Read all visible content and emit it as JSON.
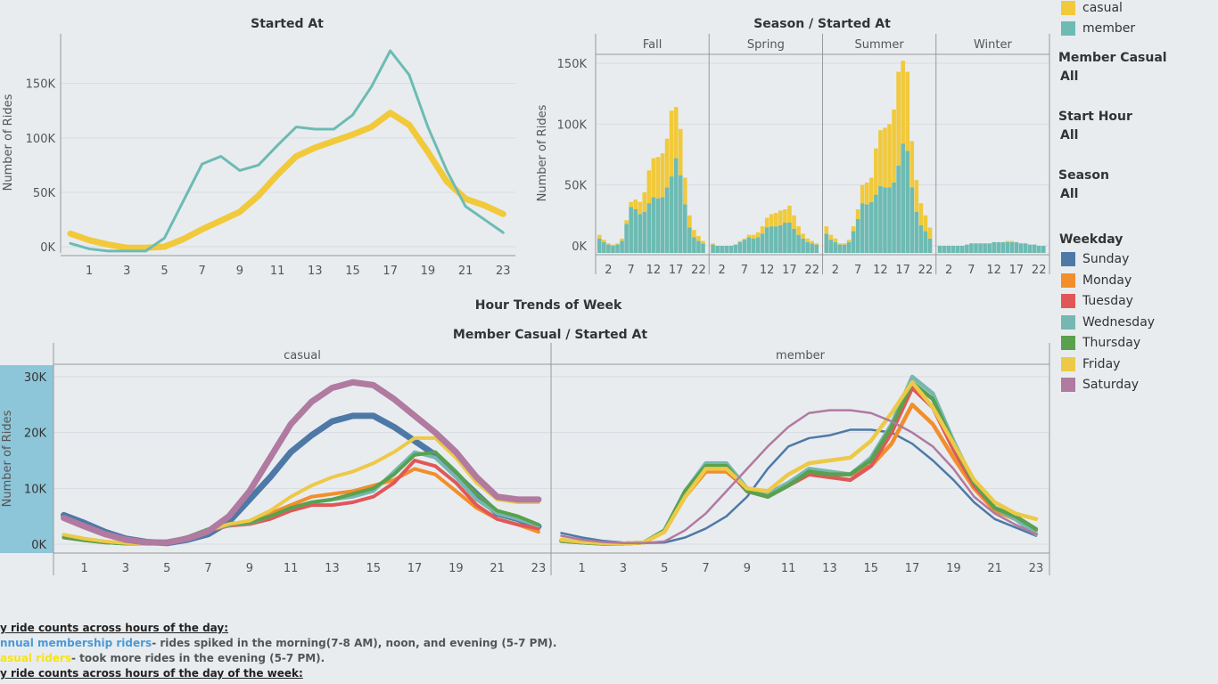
{
  "colors": {
    "casual": "#f1c93b",
    "member": "#6dbbb3",
    "weekdays": {
      "Sunday": "#4e79a7",
      "Monday": "#f28e2b",
      "Tuesday": "#e15759",
      "Wednesday": "#76b7b2",
      "Thursday": "#59a14f",
      "Friday": "#edc948",
      "Saturday": "#b07aa1"
    }
  },
  "legend_member": {
    "items": [
      {
        "label": "casual",
        "color": "#f1c93b"
      },
      {
        "label": "member",
        "color": "#6dbbb3"
      }
    ]
  },
  "filters": [
    {
      "title": "Member Casual",
      "value": "All"
    },
    {
      "title": "Start Hour",
      "value": "All"
    },
    {
      "title": "Season",
      "value": "All"
    }
  ],
  "legend_weekday": {
    "title": "Weekday",
    "items": [
      "Sunday",
      "Monday",
      "Tuesday",
      "Wednesday",
      "Thursday",
      "Friday",
      "Saturday"
    ]
  },
  "section_title": "Hour Trends of Week",
  "notes": {
    "line1": "y ride counts across hours of the day:",
    "line2a": "nnual membership riders",
    "line2b": "- rides spiked in the morning(7-8 AM), noon, and evening (5-7 PM).",
    "line3a": "asual riders",
    "line3b": "- took more rides in the evening (5-7 PM).",
    "line4": "y ride counts across hours of the day of the week:"
  },
  "chart_data": [
    {
      "type": "line",
      "title": "Started At",
      "ylabel": "Number of Rides",
      "xticks": [
        "1",
        "3",
        "5",
        "7",
        "9",
        "11",
        "13",
        "15",
        "17",
        "19",
        "21",
        "23"
      ],
      "yticks": [
        "0K",
        "50K",
        "100K",
        "150K"
      ],
      "ylim": [
        0,
        190000
      ],
      "x": [
        0,
        1,
        2,
        3,
        4,
        5,
        6,
        7,
        8,
        9,
        10,
        11,
        12,
        13,
        14,
        15,
        16,
        17,
        18,
        19,
        20,
        21,
        22,
        23
      ],
      "series": [
        {
          "name": "casual",
          "values": [
            12000,
            6000,
            2000,
            -1000,
            -1000,
            0,
            7000,
            16000,
            24000,
            32000,
            47000,
            66000,
            83000,
            91000,
            97000,
            103000,
            110000,
            123000,
            112000,
            87000,
            60000,
            44000,
            38000,
            30000
          ]
        },
        {
          "name": "member",
          "values": [
            3000,
            -2000,
            -4000,
            -4000,
            -4000,
            8000,
            42000,
            76000,
            83000,
            70000,
            75000,
            93000,
            110000,
            108000,
            108000,
            121000,
            147000,
            180000,
            158000,
            110000,
            70000,
            37000,
            25000,
            13000
          ]
        }
      ]
    },
    {
      "type": "bar",
      "title": "Season / Started At",
      "ylabel": "Number of Rides",
      "panels": [
        "Fall",
        "Spring",
        "Summer",
        "Winter"
      ],
      "xticks": [
        "2",
        "7",
        "12",
        "17",
        "22"
      ],
      "yticks": [
        "0K",
        "50K",
        "100K",
        "150K"
      ],
      "ylim": [
        0,
        155000
      ],
      "stacked": true,
      "series_order": [
        "member",
        "casual"
      ],
      "panel_values": {
        "Fall": {
          "member": [
            6,
            3,
            1,
            0,
            1,
            4,
            18,
            32,
            30,
            26,
            28,
            35,
            40,
            39,
            40,
            48,
            57,
            72,
            58,
            34,
            15,
            7,
            4,
            2
          ],
          "casual": [
            3,
            2,
            1,
            1,
            1,
            2,
            3,
            4,
            8,
            10,
            16,
            27,
            32,
            34,
            36,
            40,
            54,
            42,
            38,
            22,
            10,
            6,
            4,
            2
          ]
        },
        "Spring": {
          "member": [
            1,
            0,
            0,
            0,
            0,
            1,
            3,
            5,
            7,
            6,
            7,
            10,
            15,
            16,
            16,
            17,
            19,
            19,
            14,
            9,
            6,
            3,
            2,
            1
          ],
          "casual": [
            1,
            0,
            0,
            0,
            0,
            0,
            1,
            1,
            2,
            3,
            4,
            6,
            8,
            10,
            11,
            12,
            11,
            14,
            11,
            7,
            4,
            3,
            2,
            1
          ]
        },
        "Summer": {
          "member": [
            10,
            5,
            3,
            1,
            1,
            3,
            12,
            22,
            35,
            34,
            36,
            42,
            49,
            48,
            48,
            52,
            66,
            84,
            78,
            48,
            28,
            17,
            12,
            6
          ],
          "casual": [
            6,
            4,
            3,
            1,
            1,
            2,
            4,
            8,
            15,
            18,
            20,
            38,
            46,
            49,
            52,
            60,
            77,
            68,
            65,
            38,
            26,
            18,
            13,
            9
          ]
        },
        "Winter": {
          "member": [
            0,
            0,
            0,
            0,
            0,
            0,
            1,
            2,
            2,
            2,
            2,
            2,
            3,
            3,
            3,
            3,
            3,
            3,
            2,
            2,
            1,
            1,
            0,
            0
          ],
          "casual": [
            0,
            0,
            0,
            0,
            0,
            0,
            0,
            0,
            0,
            0,
            0,
            0,
            0,
            0,
            0,
            1,
            1,
            0,
            0,
            0,
            0,
            0,
            0,
            0
          ]
        }
      },
      "value_unit": "thousand rides"
    },
    {
      "type": "line",
      "title": "Member Casual / Started At",
      "ylabel": "Number of Rides",
      "panels": [
        "casual",
        "member"
      ],
      "xticks": [
        "1",
        "3",
        "5",
        "7",
        "9",
        "11",
        "13",
        "15",
        "17",
        "19",
        "21",
        "23"
      ],
      "yticks": [
        "0K",
        "10K",
        "20K",
        "30K"
      ],
      "ylim": [
        0,
        30000
      ],
      "x": [
        0,
        1,
        2,
        3,
        4,
        5,
        6,
        7,
        8,
        9,
        10,
        11,
        12,
        13,
        14,
        15,
        16,
        17,
        18,
        19,
        20,
        21,
        22,
        23
      ],
      "panel_series": {
        "casual": [
          {
            "name": "Sunday",
            "values": [
              5200,
              3800,
              2200,
              1000,
              400,
              200,
              800,
              1800,
              4000,
              8000,
              12000,
              16500,
              19500,
              22000,
              23000,
              23000,
              21000,
              18500,
              16000,
              12500,
              9000,
              5500,
              4500,
              3200
            ]
          },
          {
            "name": "Monday",
            "values": [
              1500,
              900,
              400,
              200,
              100,
              300,
              1200,
              2500,
              3500,
              4000,
              5500,
              7000,
              8500,
              9000,
              9500,
              10500,
              11500,
              13500,
              12500,
              9500,
              6500,
              4500,
              3500,
              2200
            ]
          },
          {
            "name": "Tuesday",
            "values": [
              1200,
              700,
              300,
              100,
              100,
              300,
              1200,
              2400,
              3300,
              3600,
              4500,
              6000,
              7000,
              7000,
              7500,
              8500,
              11000,
              15000,
              14000,
              11000,
              7000,
              4500,
              3500,
              2800
            ]
          },
          {
            "name": "Wednesday",
            "values": [
              1300,
              800,
              300,
              100,
              100,
              300,
              1300,
              2500,
              3400,
              3800,
              5000,
              6500,
              7500,
              8000,
              8500,
              9500,
              13000,
              16500,
              15500,
              12000,
              8000,
              5500,
              4500,
              3300
            ]
          },
          {
            "name": "Thursday",
            "values": [
              1200,
              700,
              300,
              100,
              100,
              300,
              1300,
              2700,
              3500,
              3900,
              5000,
              6500,
              7500,
              8000,
              9000,
              10000,
              12500,
              16000,
              16500,
              13000,
              9000,
              6000,
              5000,
              3500
            ]
          },
          {
            "name": "Friday",
            "values": [
              1700,
              1000,
              500,
              200,
              100,
              300,
              1200,
              2500,
              3600,
              4200,
              6000,
              8500,
              10500,
              12000,
              13000,
              14500,
              16500,
              19000,
              19000,
              15500,
              11000,
              8000,
              7500,
              7500
            ]
          },
          {
            "name": "Saturday",
            "values": [
              4700,
              3200,
              1800,
              800,
              300,
              300,
              1000,
              2300,
              5000,
              9500,
              15500,
              21500,
              25500,
              28000,
              29000,
              28500,
              26000,
              23000,
              20000,
              16500,
              12000,
              8500,
              8000,
              8000
            ]
          }
        ],
        "member": [
          {
            "name": "Sunday",
            "values": [
              2000,
              1200,
              600,
              300,
              200,
              300,
              1200,
              2800,
              5000,
              8500,
              13500,
              17500,
              19000,
              19500,
              20500,
              20500,
              20000,
              18000,
              15000,
              11500,
              7500,
              4500,
              3000,
              1500
            ]
          },
          {
            "name": "Monday",
            "values": [
              700,
              400,
              200,
              100,
              300,
              2300,
              8500,
              13000,
              13000,
              10000,
              9000,
              11000,
              13000,
              12500,
              12500,
              14000,
              18000,
              25000,
              21500,
              15500,
              10000,
              6000,
              4500,
              2500
            ]
          },
          {
            "name": "Tuesday",
            "values": [
              600,
              300,
              100,
              100,
              300,
              2300,
              9000,
              13500,
              13500,
              9500,
              8500,
              10500,
              12500,
              12000,
              11500,
              14000,
              20000,
              28000,
              24500,
              17000,
              10500,
              6500,
              4500,
              1800
            ]
          },
          {
            "name": "Wednesday",
            "values": [
              600,
              300,
              100,
              100,
              300,
              2500,
              9500,
              14500,
              14500,
              10000,
              9000,
              11000,
              13500,
              13000,
              12500,
              15500,
              21500,
              30000,
              27000,
              18500,
              11000,
              6500,
              4500,
              1800
            ]
          },
          {
            "name": "Thursday",
            "values": [
              600,
              300,
              100,
              100,
              300,
              2400,
              9500,
              14000,
              14000,
              9500,
              8500,
              10500,
              13000,
              12500,
              12500,
              15000,
              21000,
              29000,
              26000,
              18000,
              11000,
              6500,
              5000,
              2700
            ]
          },
          {
            "name": "Friday",
            "values": [
              800,
              400,
              200,
              100,
              300,
              2200,
              8500,
              13500,
              13500,
              10000,
              9500,
              12500,
              14500,
              15000,
              15500,
              18500,
              23500,
              29000,
              24500,
              18000,
              11500,
              7500,
              5500,
              4500
            ]
          },
          {
            "name": "Saturday",
            "values": [
              1500,
              800,
              400,
              200,
              200,
              500,
              2500,
              5500,
              9500,
              13500,
              17500,
              21000,
              23500,
              24000,
              24000,
              23500,
              22000,
              20000,
              17500,
              13500,
              8500,
              5500,
              3500,
              1800
            ]
          }
        ]
      }
    }
  ]
}
